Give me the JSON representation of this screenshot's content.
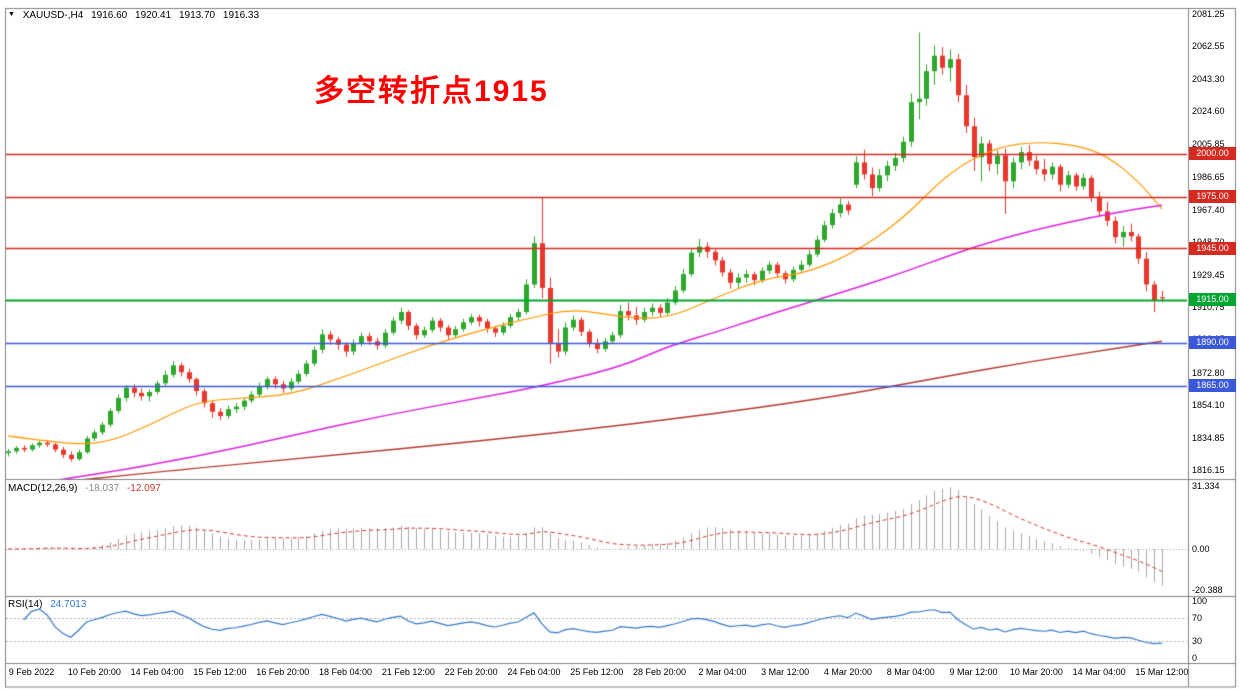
{
  "window": {
    "marker_icon": "▼",
    "header": {
      "symbol_period": "XAUUSD-,H4",
      "open": "1916.60",
      "high": "1920.41",
      "low": "1913.70",
      "close": "1916.33"
    }
  },
  "annotation": {
    "text": "多空转折点1915"
  },
  "colors": {
    "up": "#2DA82D",
    "down": "#E8382E",
    "ma_fast": "#FF9800",
    "ma_mid": "#DD22DD",
    "ma_slow": "#B23A2E",
    "hline_red": "#D42A20",
    "hline_green": "#00A532",
    "hline_blue": "#3A58D8",
    "macd_hist": "#A8A8A8",
    "macd_signal": "#D03A30",
    "rsi_line": "#3579C8",
    "separator": "#808080",
    "level_dash": "#B0B0B0"
  },
  "chart_data": {
    "type": "candlestick",
    "symbol": "XAUUSD-",
    "timeframe": "H4",
    "price_axis": {
      "max": 2081.25,
      "min": 1816.15,
      "ticks": [
        "2081.25",
        "2062.55",
        "2043.30",
        "2024.60",
        "2005.85",
        "1986.65",
        "1967.40",
        "1948.70",
        "1929.45",
        "1910.75",
        "1892.05",
        "1872.80",
        "1854.10",
        "1834.85",
        "1816.15"
      ],
      "tick_values": [
        2081.25,
        2062.55,
        2043.3,
        2024.6,
        2005.85,
        1986.65,
        1967.4,
        1948.7,
        1929.45,
        1910.75,
        1892.05,
        1872.8,
        1854.1,
        1834.85,
        1816.15
      ]
    },
    "x_axis": {
      "labels": [
        "9 Feb 2022",
        "10 Feb 20:00",
        "14 Feb 04:00",
        "15 Feb 12:00",
        "16 Feb 20:00",
        "18 Feb 04:00",
        "21 Feb 12:00",
        "22 Feb 20:00",
        "24 Feb 04:00",
        "25 Feb 12:00",
        "28 Feb 20:00",
        "2 Mar 04:00",
        "3 Mar 12:00",
        "4 Mar 20:00",
        "8 Mar 04:00",
        "9 Mar 12:00",
        "10 Mar 20:00",
        "14 Mar 04:00",
        "15 Mar 12:00"
      ],
      "label_bars": [
        3,
        11,
        19,
        27,
        35,
        43,
        51,
        59,
        67,
        75,
        83,
        91,
        99,
        107,
        115,
        123,
        131,
        139,
        147
      ]
    },
    "hlines": [
      {
        "price": 2000.0,
        "label": "2000.00",
        "color_key": "hline_red",
        "width": 1.4
      },
      {
        "price": 1975.0,
        "label": "1975.00",
        "color_key": "hline_red",
        "width": 1.4
      },
      {
        "price": 1945.0,
        "label": "1945.00",
        "color_key": "hline_red",
        "width": 1.4
      },
      {
        "price": 1915.0,
        "label": "1915.00",
        "color_key": "hline_green",
        "width": 2
      },
      {
        "price": 1890.0,
        "label": "1890.00",
        "color_key": "hline_blue",
        "width": 1.4
      },
      {
        "price": 1865.0,
        "label": "1865.00",
        "color_key": "hline_blue",
        "width": 1.4
      }
    ],
    "candles": [
      [
        1826,
        1828.5,
        1824,
        1827
      ],
      [
        1827,
        1830,
        1825.5,
        1829
      ],
      [
        1829,
        1830.5,
        1826.5,
        1828
      ],
      [
        1828,
        1831.5,
        1827,
        1830.5
      ],
      [
        1830.5,
        1833,
        1829,
        1832
      ],
      [
        1832,
        1833.5,
        1829.5,
        1831
      ],
      [
        1831,
        1832,
        1826.5,
        1828
      ],
      [
        1828,
        1829.5,
        1823,
        1825
      ],
      [
        1825,
        1827,
        1821,
        1822.5
      ],
      [
        1822.5,
        1828,
        1821.5,
        1826.5
      ],
      [
        1826.5,
        1836,
        1825.5,
        1834.5
      ],
      [
        1834.5,
        1839.5,
        1833,
        1838
      ],
      [
        1838,
        1844,
        1836.5,
        1842.5
      ],
      [
        1842.5,
        1852,
        1841,
        1850.5
      ],
      [
        1850.5,
        1860,
        1849,
        1858
      ],
      [
        1858,
        1865.5,
        1856,
        1864
      ],
      [
        1864,
        1866,
        1858.5,
        1861
      ],
      [
        1861,
        1863.5,
        1856.5,
        1859
      ],
      [
        1859,
        1863,
        1856,
        1861.5
      ],
      [
        1861.5,
        1868,
        1860,
        1866.5
      ],
      [
        1866.5,
        1874,
        1865,
        1871.5
      ],
      [
        1871.5,
        1879.5,
        1870,
        1877
      ],
      [
        1877,
        1878.5,
        1870.5,
        1873
      ],
      [
        1873,
        1875,
        1867,
        1869
      ],
      [
        1869,
        1870,
        1859.5,
        1862
      ],
      [
        1862,
        1863.5,
        1852.5,
        1855
      ],
      [
        1855,
        1856.5,
        1846.5,
        1850
      ],
      [
        1850,
        1852,
        1845,
        1847.5
      ],
      [
        1847.5,
        1853.5,
        1846,
        1851.5
      ],
      [
        1851.5,
        1855,
        1849.5,
        1853
      ],
      [
        1853,
        1858,
        1851,
        1856.5
      ],
      [
        1856.5,
        1862,
        1855,
        1860
      ],
      [
        1860,
        1867,
        1858.5,
        1865
      ],
      [
        1865,
        1870.5,
        1863,
        1869
      ],
      [
        1869,
        1870.5,
        1863.5,
        1866
      ],
      [
        1866,
        1868,
        1861,
        1863.5
      ],
      [
        1863.5,
        1869.5,
        1862,
        1867.5
      ],
      [
        1867.5,
        1874,
        1866,
        1872
      ],
      [
        1872,
        1880,
        1870.5,
        1878
      ],
      [
        1878,
        1888,
        1876.5,
        1886
      ],
      [
        1886,
        1898,
        1884,
        1895
      ],
      [
        1895,
        1897,
        1889,
        1892
      ],
      [
        1892,
        1893.5,
        1886,
        1889
      ],
      [
        1889,
        1890.5,
        1882,
        1885
      ],
      [
        1885,
        1892,
        1883,
        1890
      ],
      [
        1890,
        1896,
        1888,
        1894
      ],
      [
        1894,
        1896,
        1889,
        1891
      ],
      [
        1891,
        1893,
        1886,
        1888.5
      ],
      [
        1888.5,
        1898,
        1887,
        1896
      ],
      [
        1896,
        1905,
        1894.5,
        1903
      ],
      [
        1903,
        1910.5,
        1901,
        1908
      ],
      [
        1908,
        1909,
        1897.5,
        1900
      ],
      [
        1900,
        1901.5,
        1892,
        1894.5
      ],
      [
        1894.5,
        1899.5,
        1893,
        1897.5
      ],
      [
        1897.5,
        1905,
        1896,
        1903
      ],
      [
        1903,
        1904.5,
        1896.5,
        1899
      ],
      [
        1899,
        1900.5,
        1892,
        1894.5
      ],
      [
        1894.5,
        1900,
        1893,
        1898
      ],
      [
        1898,
        1904,
        1896.5,
        1902
      ],
      [
        1902,
        1907,
        1900.5,
        1905
      ],
      [
        1905,
        1906.5,
        1899.5,
        1902.5
      ],
      [
        1902.5,
        1904,
        1896,
        1898.5
      ],
      [
        1898.5,
        1900,
        1893.5,
        1896
      ],
      [
        1896,
        1902,
        1894.5,
        1900
      ],
      [
        1900,
        1907,
        1898.5,
        1905
      ],
      [
        1905,
        1910,
        1903,
        1908
      ],
      [
        1908,
        1927,
        1906.5,
        1924
      ],
      [
        1924,
        1952,
        1922,
        1948
      ],
      [
        1948,
        1974.5,
        1916,
        1922
      ],
      [
        1922,
        1928,
        1878,
        1890
      ],
      [
        1890,
        1898,
        1881.5,
        1885
      ],
      [
        1885,
        1902,
        1883,
        1899
      ],
      [
        1899,
        1906,
        1897,
        1903.5
      ],
      [
        1903.5,
        1905,
        1894,
        1896.5
      ],
      [
        1896.5,
        1898,
        1887.5,
        1890
      ],
      [
        1890,
        1892.5,
        1884,
        1886.5
      ],
      [
        1886.5,
        1893,
        1885,
        1891
      ],
      [
        1891,
        1896.5,
        1889.5,
        1894.5
      ],
      [
        1894.5,
        1912,
        1893,
        1908.5
      ],
      [
        1908.5,
        1913.5,
        1903,
        1906
      ],
      [
        1906,
        1911,
        1900.5,
        1903.5
      ],
      [
        1903.5,
        1910.5,
        1902,
        1908
      ],
      [
        1908,
        1913,
        1905.5,
        1910.5
      ],
      [
        1910.5,
        1912.5,
        1905,
        1907.5
      ],
      [
        1907.5,
        1916,
        1906,
        1913.5
      ],
      [
        1913.5,
        1923,
        1912,
        1920.5
      ],
      [
        1920.5,
        1933,
        1919,
        1930
      ],
      [
        1930,
        1945,
        1928.5,
        1942.5
      ],
      [
        1942.5,
        1950.5,
        1940,
        1946
      ],
      [
        1946,
        1948.5,
        1939.5,
        1943
      ],
      [
        1943,
        1944.5,
        1935,
        1938
      ],
      [
        1938,
        1940,
        1928.5,
        1931
      ],
      [
        1931,
        1933,
        1921.5,
        1925
      ],
      [
        1925,
        1930.5,
        1922,
        1928
      ],
      [
        1928,
        1932.5,
        1925,
        1930
      ],
      [
        1930,
        1931.5,
        1923.5,
        1926.5
      ],
      [
        1926.5,
        1934,
        1925,
        1932
      ],
      [
        1932,
        1937.5,
        1930,
        1935.5
      ],
      [
        1935.5,
        1937,
        1928,
        1930.5
      ],
      [
        1930.5,
        1932,
        1924.5,
        1927
      ],
      [
        1927,
        1934.5,
        1925.5,
        1932.5
      ],
      [
        1932.5,
        1938,
        1930.5,
        1935.5
      ],
      [
        1935.5,
        1944,
        1934,
        1941.5
      ],
      [
        1941.5,
        1952.5,
        1940,
        1950
      ],
      [
        1950,
        1961,
        1948.5,
        1958.5
      ],
      [
        1958.5,
        1968,
        1956.5,
        1965.5
      ],
      [
        1965.5,
        1974,
        1963,
        1970.5
      ],
      [
        1970.5,
        1972.5,
        1964.5,
        1967
      ],
      [
        1982,
        1998.5,
        1980,
        1995
      ],
      [
        1995,
        2002.5,
        1985,
        1988
      ],
      [
        1988,
        1992,
        1975.5,
        1980
      ],
      [
        1980,
        1991,
        1978,
        1987.5
      ],
      [
        1987.5,
        1996,
        1984,
        1993
      ],
      [
        1993,
        2000.5,
        1990,
        1997.5
      ],
      [
        1997.5,
        2010,
        1995,
        2007
      ],
      [
        2007,
        2035,
        2004,
        2030
      ],
      [
        2030,
        2070.5,
        2020,
        2032
      ],
      [
        2032,
        2052,
        2028,
        2048
      ],
      [
        2048,
        2063,
        2040,
        2057
      ],
      [
        2057,
        2062,
        2046,
        2050
      ],
      [
        2050,
        2060.5,
        2042,
        2055
      ],
      [
        2055,
        2058,
        2030,
        2034
      ],
      [
        2034,
        2040,
        2012,
        2016
      ],
      [
        2016,
        2021,
        1990,
        1998
      ],
      [
        1998,
        2010,
        1984,
        2006
      ],
      [
        2006,
        2008,
        1990,
        1994
      ],
      [
        1994,
        2002,
        1988,
        1999
      ],
      [
        1999,
        2003,
        1965,
        1984
      ],
      [
        1984,
        1998,
        1980,
        1995
      ],
      [
        1995,
        2004,
        1991,
        2001
      ],
      [
        2001,
        2005,
        1993,
        1996
      ],
      [
        1996,
        1999,
        1988,
        1991
      ],
      [
        1991,
        1997,
        1984,
        1988
      ],
      [
        1988,
        1995,
        1985,
        1992.5
      ],
      [
        1992.5,
        1994,
        1978,
        1982
      ],
      [
        1982,
        1990,
        1980,
        1987.5
      ],
      [
        1987.5,
        1989,
        1978.5,
        1981
      ],
      [
        1981,
        1988.5,
        1979,
        1986
      ],
      [
        1986,
        1987.5,
        1972,
        1975
      ],
      [
        1975,
        1978,
        1963,
        1966.5
      ],
      [
        1966.5,
        1972,
        1958,
        1961
      ],
      [
        1961,
        1963.5,
        1948,
        1951.5
      ],
      [
        1951.5,
        1958,
        1946,
        1954.5
      ],
      [
        1954.5,
        1959.5,
        1949,
        1952
      ],
      [
        1952,
        1953.5,
        1936,
        1939
      ],
      [
        1939,
        1943,
        1920,
        1924
      ],
      [
        1924,
        1926,
        1908,
        1915
      ],
      [
        1916.6,
        1920.41,
        1913.7,
        1916.33
      ]
    ],
    "ma_lines": [
      {
        "name": "ma-fast",
        "color_key": "ma_fast",
        "width": 1.2,
        "points": [
          [
            0,
            1836
          ],
          [
            6,
            1832
          ],
          [
            12,
            1831
          ],
          [
            18,
            1842
          ],
          [
            24,
            1856
          ],
          [
            30,
            1858
          ],
          [
            36,
            1860
          ],
          [
            42,
            1869
          ],
          [
            48,
            1879
          ],
          [
            54,
            1889
          ],
          [
            60,
            1897
          ],
          [
            66,
            1904
          ],
          [
            72,
            1910
          ],
          [
            78,
            1905
          ],
          [
            84,
            1904
          ],
          [
            90,
            1916
          ],
          [
            96,
            1927
          ],
          [
            102,
            1931
          ],
          [
            108,
            1943
          ],
          [
            114,
            1962
          ],
          [
            120,
            1990
          ],
          [
            126,
            2004
          ],
          [
            131,
            2007
          ],
          [
            136,
            2005
          ],
          [
            140,
            1999
          ],
          [
            144,
            1984
          ],
          [
            147,
            1968
          ]
        ]
      },
      {
        "name": "ma-mid",
        "color_key": "ma_mid",
        "width": 1.5,
        "points": [
          [
            0,
            1806
          ],
          [
            12,
            1814
          ],
          [
            24,
            1824
          ],
          [
            36,
            1836
          ],
          [
            48,
            1848
          ],
          [
            60,
            1858
          ],
          [
            68,
            1865
          ],
          [
            78,
            1876
          ],
          [
            84,
            1888
          ],
          [
            90,
            1896
          ],
          [
            96,
            1905
          ],
          [
            103,
            1915
          ],
          [
            108,
            1922
          ],
          [
            114,
            1931
          ],
          [
            120,
            1941
          ],
          [
            126,
            1950
          ],
          [
            132,
            1957
          ],
          [
            138,
            1963
          ],
          [
            144,
            1968
          ],
          [
            147,
            1970
          ]
        ]
      },
      {
        "name": "ma-slow",
        "color_key": "ma_slow",
        "width": 1.5,
        "points": [
          [
            0,
            1806
          ],
          [
            21,
            1816
          ],
          [
            40,
            1824
          ],
          [
            60,
            1833
          ],
          [
            80,
            1843
          ],
          [
            100,
            1855
          ],
          [
            113,
            1865
          ],
          [
            120,
            1871
          ],
          [
            130,
            1879
          ],
          [
            140,
            1886
          ],
          [
            147,
            1891
          ]
        ]
      }
    ],
    "macd": {
      "label": "MACD(12,26,9)",
      "value_main": "-18.037",
      "value_signal": "-12.097",
      "fast": 12,
      "slow": 26,
      "signal": 9,
      "axis": {
        "max": 31.334,
        "min": -20.388,
        "ticks": [
          "31.334",
          "0.00",
          "-20.388"
        ],
        "tick_values": [
          31.334,
          0,
          -20.388
        ]
      }
    },
    "rsi": {
      "label": "RSI(14)",
      "value": "24.7013",
      "period": 14,
      "levels": [
        70,
        30
      ],
      "axis": {
        "max": 100,
        "min": 0,
        "ticks": [
          "100",
          "70",
          "30",
          "0"
        ],
        "tick_values": [
          100,
          70,
          30,
          0
        ]
      }
    }
  }
}
